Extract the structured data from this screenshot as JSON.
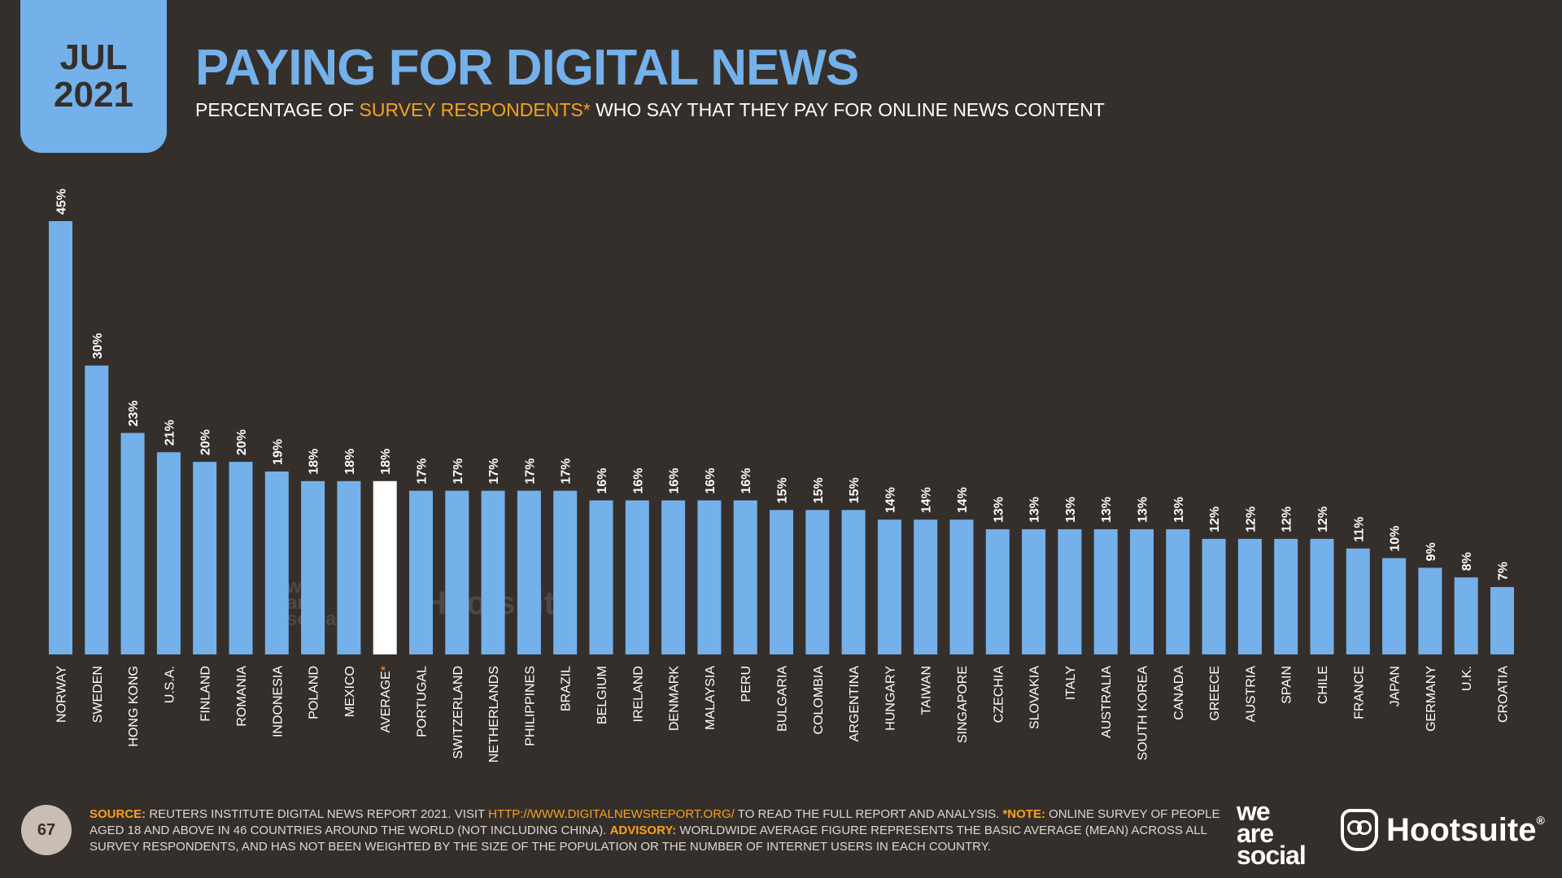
{
  "header": {
    "month": "JUL",
    "year": "2021",
    "title": "PAYING FOR DIGITAL NEWS",
    "subtitle_pre": "PERCENTAGE OF ",
    "subtitle_hl": "SURVEY RESPONDENTS*",
    "subtitle_post": " WHO SAY THAT THEY PAY FOR ONLINE NEWS CONTENT"
  },
  "colors": {
    "background": "#352f2b",
    "bar": "#74b1ea",
    "average_bar": "#ffffff",
    "accent": "#f7a21b"
  },
  "chart_data": {
    "type": "bar",
    "title": "PAYING FOR DIGITAL NEWS",
    "categories": [
      "NORWAY",
      "SWEDEN",
      "HONG KONG",
      "U.S.A.",
      "FINLAND",
      "ROMANIA",
      "INDONESIA",
      "POLAND",
      "MEXICO",
      "AVERAGE",
      "PORTUGAL",
      "SWITZERLAND",
      "NETHERLANDS",
      "PHILIPPINES",
      "BRAZIL",
      "BELGIUM",
      "IRELAND",
      "DENMARK",
      "MALAYSIA",
      "PERU",
      "BULGARIA",
      "COLOMBIA",
      "ARGENTINA",
      "HUNGARY",
      "TAIWAN",
      "SINGAPORE",
      "CZECHIA",
      "SLOVAKIA",
      "ITALY",
      "AUSTRALIA",
      "SOUTH KOREA",
      "CANADA",
      "GREECE",
      "AUSTRIA",
      "SPAIN",
      "CHILE",
      "FRANCE",
      "JAPAN",
      "GERMANY",
      "U.K.",
      "CROATIA"
    ],
    "values": [
      45,
      30,
      23,
      21,
      20,
      20,
      19,
      18,
      18,
      18,
      17,
      17,
      17,
      17,
      17,
      16,
      16,
      16,
      16,
      16,
      15,
      15,
      15,
      14,
      14,
      14,
      13,
      13,
      13,
      13,
      13,
      13,
      12,
      12,
      12,
      12,
      11,
      10,
      9,
      8,
      7
    ],
    "labels": [
      "45%",
      "30%",
      "23%",
      "21%",
      "20%",
      "20%",
      "19%",
      "18%",
      "18%",
      "18%",
      "17%",
      "17%",
      "17%",
      "17%",
      "17%",
      "16%",
      "16%",
      "16%",
      "16%",
      "16%",
      "15%",
      "15%",
      "15%",
      "14%",
      "14%",
      "14%",
      "13%",
      "13%",
      "13%",
      "13%",
      "13%",
      "13%",
      "12%",
      "12%",
      "12%",
      "12%",
      "11%",
      "10%",
      "9%",
      "8%",
      "7%"
    ],
    "highlight_category": "AVERAGE",
    "highlight_marker": "*",
    "ylim": [
      0,
      45
    ]
  },
  "footer": {
    "source_key": "SOURCE:",
    "source_text": " REUTERS INSTITUTE DIGITAL NEWS REPORT 2021. VISIT ",
    "url": "HTTP://WWW.DIGITALNEWSREPORT.ORG/",
    "after_url": " TO READ THE FULL REPORT AND ANALYSIS. ",
    "note_key": "*NOTE:",
    "note_text": " ONLINE SURVEY OF PEOPLE AGED 18 AND ABOVE IN 46 COUNTRIES AROUND THE WORLD (NOT INCLUDING CHINA). ",
    "advisory_key": "ADVISORY:",
    "advisory_text": " WORLDWIDE AVERAGE FIGURE REPRESENTS THE BASIC AVERAGE (MEAN) ACROSS ALL SURVEY RESPONDENTS, AND HAS NOT BEEN WEIGHTED BY THE SIZE OF THE POPULATION OR THE NUMBER OF INTERNET USERS IN EACH COUNTRY."
  },
  "page_number": "67",
  "brands": {
    "was_line1": "we",
    "was_line2": "are",
    "was_line3": "social",
    "hootsuite": "Hootsuite",
    "registered": "®"
  }
}
